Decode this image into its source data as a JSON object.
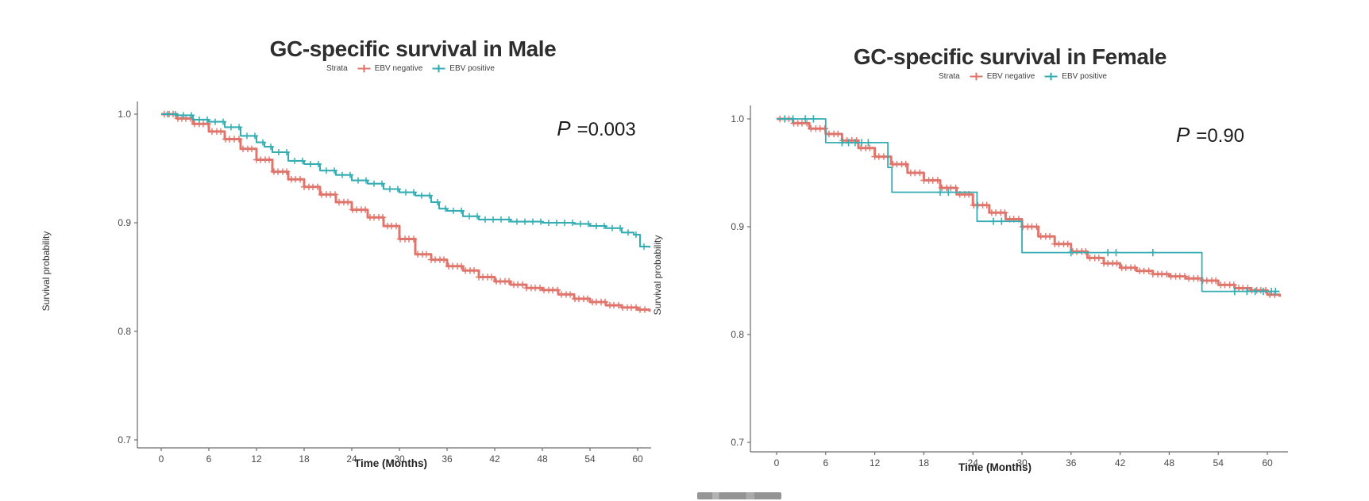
{
  "figure": {
    "background": "#ffffff"
  },
  "chart_data": [
    {
      "type": "line",
      "subtype": "kaplan-meier-step",
      "title": "GC-specific survival in Male",
      "p_label": "P",
      "p_value": "=0.003",
      "xlabel": "Time (Months)",
      "ylabel": "Survival probability",
      "legend": {
        "title": "Strata",
        "position": "top",
        "entries": [
          "EBV negative",
          "EBV positive"
        ]
      },
      "xticks": [
        0,
        6,
        12,
        18,
        24,
        30,
        36,
        42,
        48,
        54,
        60
      ],
      "yticks": [
        1.0,
        0.9,
        0.8,
        0.7
      ],
      "xlim": [
        0,
        62
      ],
      "ylim": [
        0.7,
        1.0
      ],
      "grid": false,
      "series": [
        {
          "name": "EBV negative",
          "color": "#E0756C",
          "points": [
            [
              0,
              1.0
            ],
            [
              2,
              0.996
            ],
            [
              4,
              0.991
            ],
            [
              6,
              0.984
            ],
            [
              8,
              0.977
            ],
            [
              10,
              0.968
            ],
            [
              12,
              0.958
            ],
            [
              14,
              0.947
            ],
            [
              16,
              0.94
            ],
            [
              18,
              0.933
            ],
            [
              20,
              0.926
            ],
            [
              22,
              0.919
            ],
            [
              24,
              0.912
            ],
            [
              26,
              0.905
            ],
            [
              28,
              0.897
            ],
            [
              30,
              0.885
            ],
            [
              32,
              0.871
            ],
            [
              34,
              0.866
            ],
            [
              36,
              0.86
            ],
            [
              38,
              0.856
            ],
            [
              40,
              0.85
            ],
            [
              42,
              0.846
            ],
            [
              44,
              0.843
            ],
            [
              46,
              0.84
            ],
            [
              48,
              0.838
            ],
            [
              50,
              0.834
            ],
            [
              52,
              0.83
            ],
            [
              54,
              0.827
            ],
            [
              56,
              0.824
            ],
            [
              58,
              0.822
            ],
            [
              60,
              0.82
            ],
            [
              61.5,
              0.818
            ]
          ],
          "censors": {
            "style": "dense",
            "from": 0.4,
            "to": 61.2,
            "step": 0.55
          }
        },
        {
          "name": "EBV positive",
          "color": "#35ADB2",
          "points": [
            [
              0,
              1.0
            ],
            [
              2,
              0.999
            ],
            [
              4,
              0.995
            ],
            [
              6,
              0.993
            ],
            [
              8,
              0.988
            ],
            [
              10,
              0.98
            ],
            [
              12,
              0.974
            ],
            [
              13,
              0.97
            ],
            [
              14,
              0.965
            ],
            [
              16,
              0.957
            ],
            [
              18,
              0.954
            ],
            [
              20,
              0.948
            ],
            [
              22,
              0.944
            ],
            [
              24,
              0.939
            ],
            [
              26,
              0.936
            ],
            [
              28,
              0.931
            ],
            [
              30,
              0.928
            ],
            [
              32,
              0.925
            ],
            [
              34,
              0.919
            ],
            [
              35,
              0.913
            ],
            [
              36,
              0.911
            ],
            [
              38,
              0.906
            ],
            [
              40,
              0.903
            ],
            [
              44,
              0.901
            ],
            [
              48,
              0.9
            ],
            [
              52,
              0.899
            ],
            [
              54,
              0.897
            ],
            [
              56,
              0.895
            ],
            [
              58,
              0.891
            ],
            [
              59.5,
              0.889
            ],
            [
              60.3,
              0.878
            ],
            [
              61.5,
              0.877
            ]
          ],
          "censors": {
            "style": "dense",
            "from": 0.8,
            "to": 61,
            "step": 1.0
          }
        }
      ]
    },
    {
      "type": "line",
      "subtype": "kaplan-meier-step",
      "title": "GC-specific survival in Female",
      "p_label": "P",
      "p_value": "=0.90",
      "xlabel": "Time (Months)",
      "ylabel": "Survival probability",
      "legend": {
        "title": "Strata",
        "position": "top",
        "entries": [
          "EBV negative",
          "EBV positive"
        ]
      },
      "xticks": [
        0,
        6,
        12,
        18,
        24,
        30,
        36,
        42,
        48,
        54,
        60
      ],
      "yticks": [
        1.0,
        0.9,
        0.8,
        0.7
      ],
      "xlim": [
        0,
        62
      ],
      "ylim": [
        0.7,
        1.0
      ],
      "grid": false,
      "series": [
        {
          "name": "EBV negative",
          "color": "#E0756C",
          "points": [
            [
              0,
              1.0
            ],
            [
              2,
              0.996
            ],
            [
              4,
              0.991
            ],
            [
              6,
              0.986
            ],
            [
              8,
              0.98
            ],
            [
              10,
              0.973
            ],
            [
              12,
              0.965
            ],
            [
              14,
              0.958
            ],
            [
              16,
              0.95
            ],
            [
              18,
              0.943
            ],
            [
              20,
              0.936
            ],
            [
              22,
              0.93
            ],
            [
              24,
              0.92
            ],
            [
              26,
              0.913
            ],
            [
              28,
              0.907
            ],
            [
              30,
              0.9
            ],
            [
              32,
              0.891
            ],
            [
              34,
              0.884
            ],
            [
              36,
              0.877
            ],
            [
              38,
              0.871
            ],
            [
              40,
              0.866
            ],
            [
              42,
              0.862
            ],
            [
              44,
              0.859
            ],
            [
              46,
              0.856
            ],
            [
              48,
              0.854
            ],
            [
              50,
              0.852
            ],
            [
              52,
              0.85
            ],
            [
              54,
              0.846
            ],
            [
              56,
              0.843
            ],
            [
              58,
              0.841
            ],
            [
              60,
              0.837
            ],
            [
              61.5,
              0.835
            ]
          ],
          "censors": {
            "style": "dense",
            "from": 0.4,
            "to": 61.2,
            "step": 0.55
          }
        },
        {
          "name": "EBV positive",
          "color": "#35ADB2",
          "points": [
            [
              0,
              1.0
            ],
            [
              6,
              0.978
            ],
            [
              13.6,
              0.955
            ],
            [
              14.1,
              0.932
            ],
            [
              24.5,
              0.905
            ],
            [
              30,
              0.876
            ],
            [
              52,
              0.84
            ],
            [
              61.5,
              0.84
            ]
          ],
          "censors": {
            "style": "list",
            "t": [
              1,
              2,
              3.5,
              4.5,
              8,
              8.8,
              9.6,
              10.4,
              11.2,
              20,
              21,
              26.5,
              27.5,
              36,
              40.5,
              41.5,
              46,
              56,
              57.5,
              58.5,
              59.5,
              60.5,
              61
            ]
          }
        }
      ]
    }
  ]
}
